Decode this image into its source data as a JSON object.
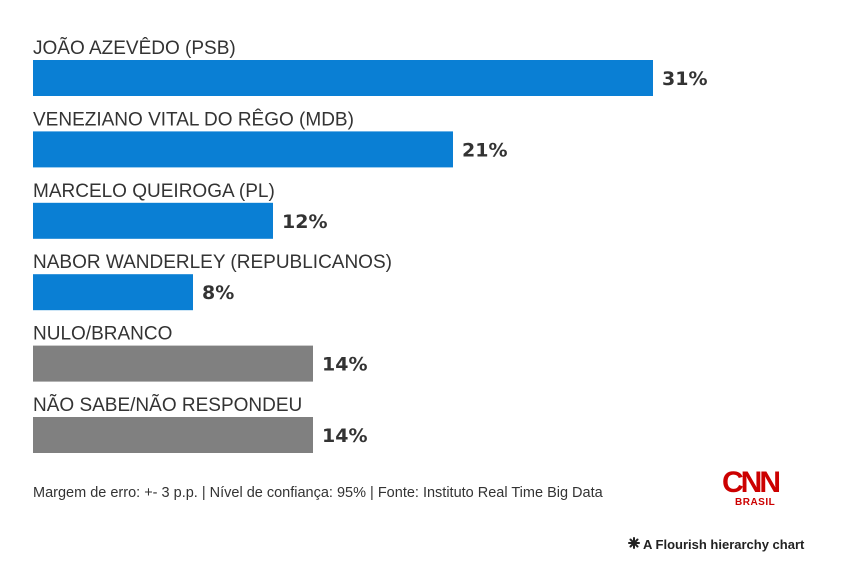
{
  "chart_data": {
    "type": "bar",
    "orientation": "horizontal",
    "categories": [
      "JOÃO AZEVÊDO (PSB)",
      "VENEZIANO VITAL DO RÊGO (MDB)",
      "MARCELO QUEIROGA (PL)",
      "NABOR WANDERLEY (REPUBLICANOS)",
      "NULO/BRANCO",
      "NÃO SABE/NÃO RESPONDEU"
    ],
    "values": [
      31,
      21,
      12,
      8,
      14,
      14
    ],
    "value_labels": [
      "31%",
      "21%",
      "12%",
      "8%",
      "14%",
      "14%"
    ],
    "colors": [
      "#0a7fd4",
      "#0a7fd4",
      "#0a7fd4",
      "#0a7fd4",
      "#808080",
      "#808080"
    ],
    "unit": "%",
    "grid": false,
    "legend": "none"
  },
  "footer": {
    "note": "Margem de erro: +- 3 p.p. | Nível de confiança: 95% | Fonte: Instituto Real Time Big Data"
  },
  "logo": {
    "main": "CNN",
    "sub": "BRASIL",
    "color": "#cc0000"
  },
  "credit": {
    "text": "A Flourish hierarchy chart",
    "icon": "flourish-asterisk-icon"
  }
}
